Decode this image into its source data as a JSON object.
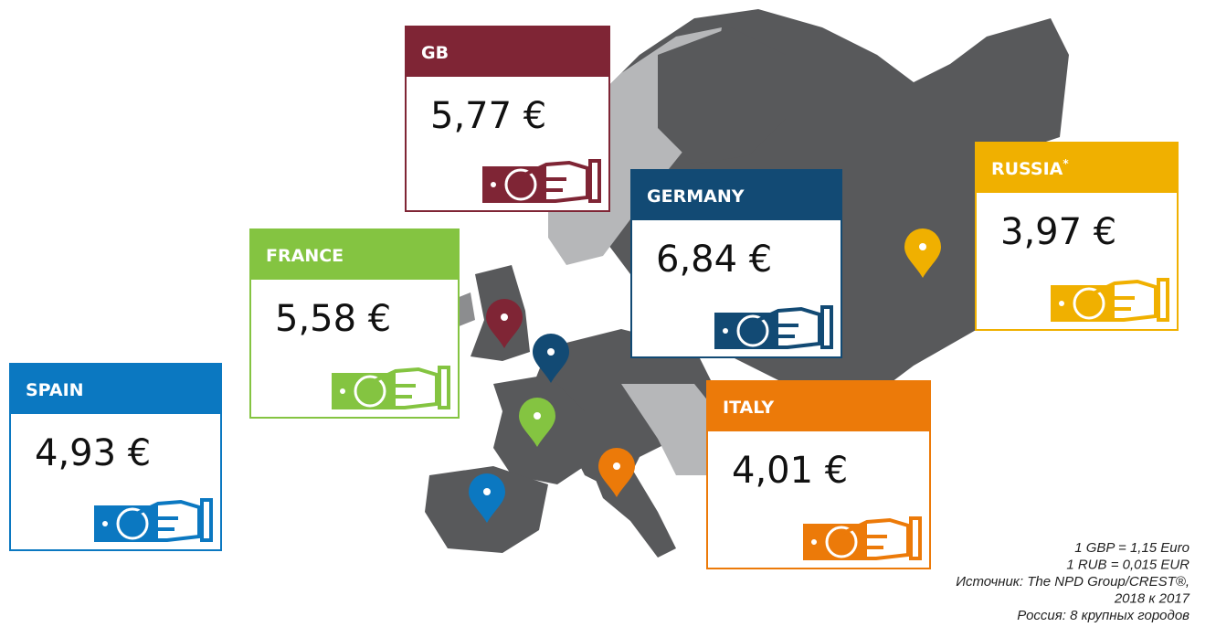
{
  "cards": [
    {
      "name": "GB",
      "price": "5,77 €",
      "color": "#7f2535",
      "box": "gb"
    },
    {
      "name": "FRANCE",
      "price": "5,58 €",
      "color": "#84c441",
      "box": "fr"
    },
    {
      "name": "SPAIN",
      "price": "4,93 €",
      "color": "#0b78c1",
      "box": "es"
    },
    {
      "name": "GERMANY",
      "price": "6,84 €",
      "color": "#124a74",
      "box": "de"
    },
    {
      "name": "RUSSIA",
      "sup": "*",
      "price": "3,97 €",
      "color": "#f0b000",
      "box": "ru"
    },
    {
      "name": "ITALY",
      "price": "4,01 €",
      "color": "#ec7a09",
      "box": "it"
    }
  ],
  "notes": [
    "1 GBP = 1,15 Euro",
    "1 RUB = 0,015 EUR",
    "Источник: The NPD Group/CREST®,",
    "2018 к 2017",
    "Россия: 8 крупных городов"
  ]
}
